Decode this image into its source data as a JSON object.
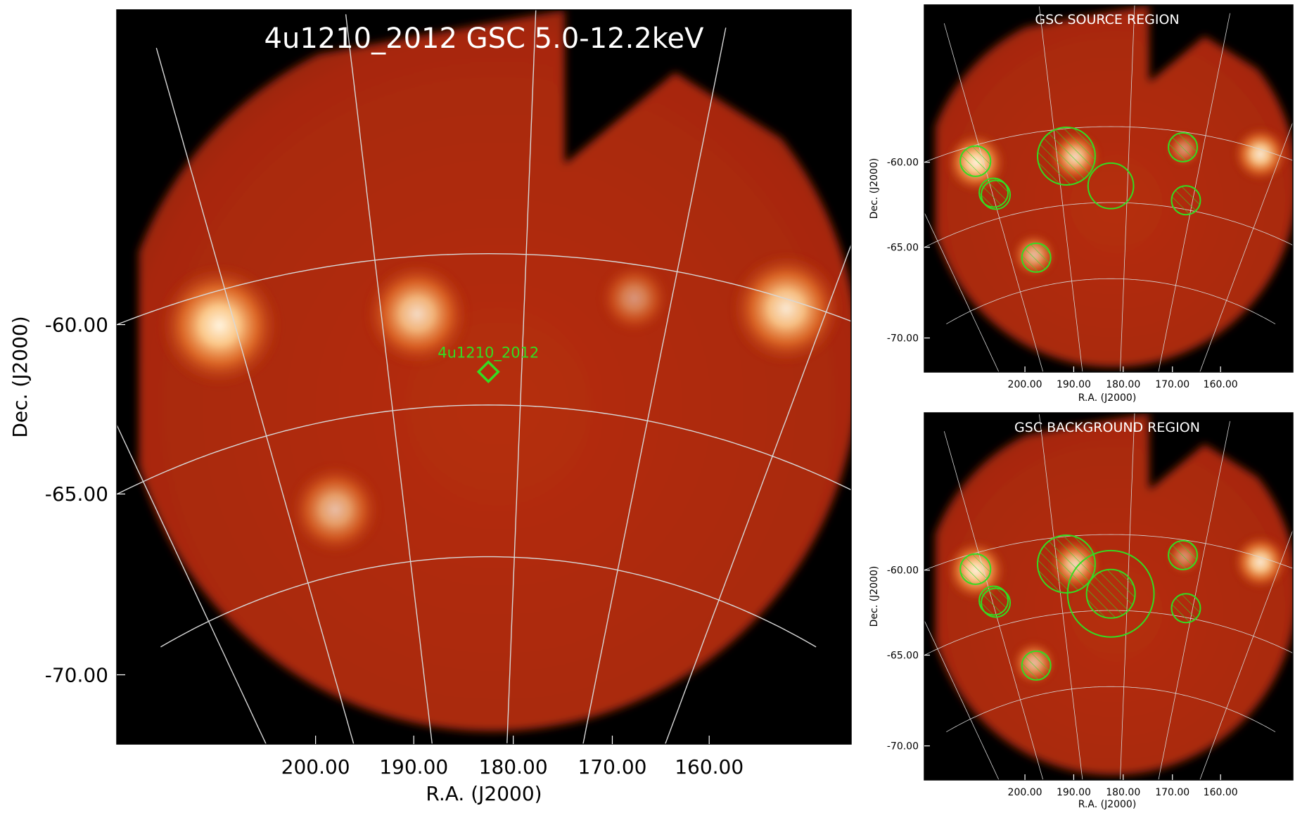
{
  "colors": {
    "sky_background": "#000000",
    "sky_field": "#b02a0c",
    "source_glow": "#ffe0b0",
    "grid": "#d8d8d8",
    "region": "#33dd22",
    "marker": "#33dd22"
  },
  "chart_data": [
    {
      "type": "heatmap",
      "panel": "main",
      "title": "4u1210_2012 GSC 5.0-12.2keV",
      "xlabel": "R.A. (J2000)",
      "ylabel": "Dec. (J2000)",
      "x_ticks": [
        "200.00",
        "190.00",
        "180.00",
        "170.00",
        "160.00"
      ],
      "y_ticks": [
        "-60.00",
        "-65.00",
        "-70.00"
      ],
      "x_tick_values": [
        200,
        190,
        180,
        170,
        160
      ],
      "y_tick_values": [
        -60,
        -65,
        -70
      ],
      "grid": true,
      "target": {
        "label": "4u1210_2012",
        "ra": 182.5,
        "dec": -63.9
      },
      "bright_sources": [
        {
          "ra": 201.0,
          "dec": -61.1,
          "intensity": 1.0
        },
        {
          "ra": 187.5,
          "dec": -61.9,
          "intensity": 0.75
        },
        {
          "ra": 162.5,
          "dec": -60.3,
          "intensity": 0.85
        },
        {
          "ra": 196.0,
          "dec": -67.9,
          "intensity": 0.55
        },
        {
          "ra": 172.5,
          "dec": -61.1,
          "intensity": 0.25
        }
      ]
    },
    {
      "type": "heatmap",
      "panel": "source",
      "title": "GSC SOURCE REGION",
      "xlabel": "R.A. (J2000)",
      "ylabel": "Dec. (J2000)",
      "x_ticks": [
        "200.00",
        "190.00",
        "180.00",
        "170.00",
        "160.00"
      ],
      "y_ticks": [
        "-60.00",
        "-65.00",
        "-70.00"
      ],
      "regions": [
        {
          "ra": 201.0,
          "dec": -61.0,
          "r": 1.0,
          "hatched": true,
          "double": false
        },
        {
          "ra": 199.8,
          "dec": -63.3,
          "r": 0.95,
          "hatched": true,
          "double": true
        },
        {
          "ra": 188.7,
          "dec": -61.8,
          "r": 1.9,
          "hatched": true,
          "double": false
        },
        {
          "ra": 182.5,
          "dec": -63.9,
          "r": 1.5,
          "hatched": false,
          "double": false
        },
        {
          "ra": 172.7,
          "dec": -61.0,
          "r": 0.95,
          "hatched": true,
          "double": false
        },
        {
          "ra": 171.0,
          "dec": -64.4,
          "r": 0.95,
          "hatched": true,
          "double": false
        },
        {
          "ra": 195.7,
          "dec": -68.1,
          "r": 0.95,
          "hatched": true,
          "double": false
        }
      ]
    },
    {
      "type": "heatmap",
      "panel": "background",
      "title": "GSC BACKGROUND REGION",
      "xlabel": "R.A. (J2000)",
      "ylabel": "Dec. (J2000)",
      "x_ticks": [
        "200.00",
        "190.00",
        "180.00",
        "170.00",
        "160.00"
      ],
      "y_ticks": [
        "-60.00",
        "-65.00",
        "-70.00"
      ],
      "regions": [
        {
          "ra": 201.0,
          "dec": -61.0,
          "r": 1.0,
          "hatched": true,
          "double": false
        },
        {
          "ra": 199.8,
          "dec": -63.3,
          "r": 0.95,
          "hatched": true,
          "double": true
        },
        {
          "ra": 188.7,
          "dec": -61.8,
          "r": 1.9,
          "hatched": true,
          "double": false
        },
        {
          "ra": 182.5,
          "dec": -63.9,
          "r": 1.6,
          "hatched": true,
          "double": false
        },
        {
          "ra": 182.5,
          "dec": -63.9,
          "r": 2.85,
          "hatched": false,
          "double": false
        },
        {
          "ra": 172.7,
          "dec": -61.0,
          "r": 0.95,
          "hatched": true,
          "double": false
        },
        {
          "ra": 171.0,
          "dec": -64.4,
          "r": 0.95,
          "hatched": true,
          "double": false
        },
        {
          "ra": 195.7,
          "dec": -68.1,
          "r": 0.95,
          "hatched": true,
          "double": false
        }
      ]
    }
  ]
}
